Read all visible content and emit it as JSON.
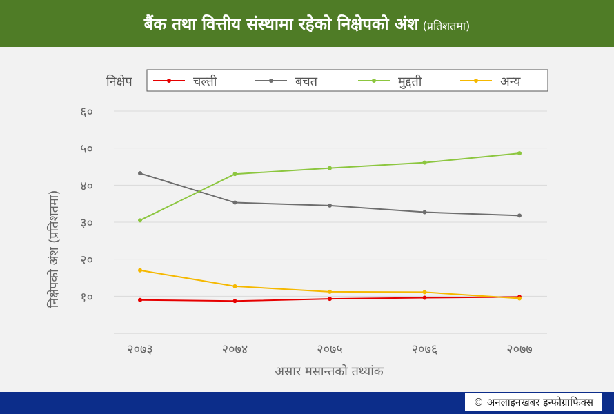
{
  "header": {
    "title": "बैंक तथा वित्तीय संस्थामा रहेको निक्षेपको अंश",
    "title_suffix": "(प्रतिशतमा)"
  },
  "chart_data": {
    "type": "line",
    "legend_title": "निक्षेप",
    "legend_position": "top",
    "categories": [
      "२०७३",
      "२०७४",
      "२०७५",
      "२०७६",
      "२०७७"
    ],
    "ylim": [
      0,
      60
    ],
    "yticks": [
      10,
      20,
      30,
      40,
      50,
      60
    ],
    "ytick_labels": [
      "१०",
      "२०",
      "३०",
      "४०",
      "५०",
      "६०"
    ],
    "xlabel": "असार मसान्तको तथ्यांक",
    "ylabel": "निक्षेपको अंश (प्रतिशतमा)",
    "grid": true,
    "series": [
      {
        "name": "चल्ती",
        "color": "#e60000",
        "values": [
          9.0,
          8.7,
          9.3,
          9.6,
          9.8
        ]
      },
      {
        "name": "बचत",
        "color": "#6e6e6e",
        "values": [
          43.2,
          35.3,
          34.5,
          32.7,
          31.8
        ]
      },
      {
        "name": "मुद्दती",
        "color": "#8cc63f",
        "values": [
          30.5,
          43.0,
          44.6,
          46.1,
          48.6
        ]
      },
      {
        "name": "अन्य",
        "color": "#f5b800",
        "values": [
          17.0,
          12.7,
          11.2,
          11.1,
          9.4
        ]
      }
    ]
  },
  "footer": {
    "credit": "© अनलाइनखबर इन्फोग्राफिक्स"
  }
}
